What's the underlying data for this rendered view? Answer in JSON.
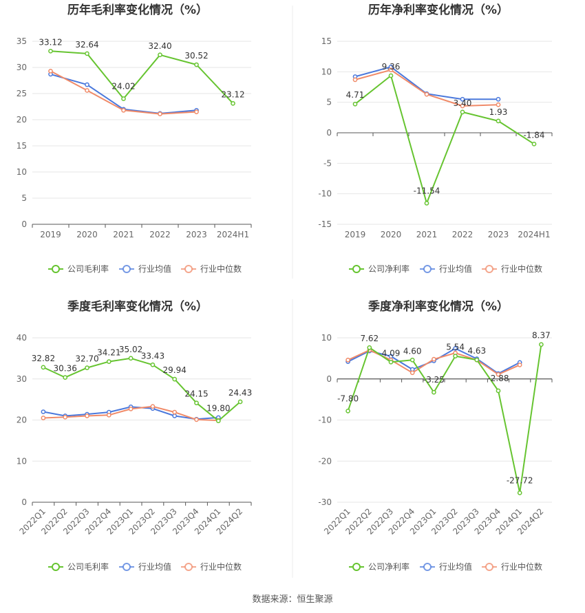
{
  "source": "数据来源：恒生聚源",
  "colors": {
    "company": "#66c430",
    "avg": "#4a78dc",
    "median": "#f08a68"
  },
  "chart_data": [
    {
      "type": "line",
      "title": "历年毛利率变化情况（%）",
      "categories": [
        "2019",
        "2020",
        "2021",
        "2022",
        "2023",
        "2024H1"
      ],
      "ylim": [
        0,
        35
      ],
      "yticks": [
        "0",
        "5",
        "10",
        "15",
        "20",
        "25",
        "30",
        "35"
      ],
      "legend": [
        "公司毛利率",
        "行业均值",
        "行业中位数"
      ],
      "series": [
        {
          "name": "公司毛利率",
          "values": [
            33.12,
            32.64,
            24.02,
            32.4,
            30.52,
            23.12
          ],
          "labels": [
            "33.12",
            "32.64",
            "24.02",
            "32.40",
            "30.52",
            "23.12"
          ]
        },
        {
          "name": "行业均值",
          "values": [
            28.7,
            26.7,
            22.0,
            21.2,
            21.8,
            null
          ]
        },
        {
          "name": "行业中位数",
          "values": [
            29.3,
            25.6,
            21.8,
            21.1,
            21.5,
            null
          ]
        }
      ]
    },
    {
      "type": "line",
      "title": "历年净利率变化情况（%）",
      "categories": [
        "2019",
        "2020",
        "2021",
        "2022",
        "2023",
        "2024H1"
      ],
      "ylim": [
        -15,
        15
      ],
      "yticks": [
        "-15",
        "-10",
        "-5",
        "0",
        "5",
        "10",
        "15"
      ],
      "legend": [
        "公司净利率",
        "行业均值",
        "行业中位数"
      ],
      "series": [
        {
          "name": "公司净利率",
          "values": [
            4.71,
            9.36,
            -11.54,
            3.4,
            1.93,
            -1.84
          ],
          "labels": [
            "4.71",
            "9.36",
            "-11.54",
            "3.40",
            "1.93",
            "-1.84"
          ]
        },
        {
          "name": "行业均值",
          "values": [
            9.2,
            10.8,
            6.4,
            5.5,
            5.5,
            null
          ]
        },
        {
          "name": "行业中位数",
          "values": [
            8.7,
            10.3,
            6.3,
            4.4,
            4.6,
            null
          ]
        }
      ]
    },
    {
      "type": "line",
      "title": "季度毛利率变化情况（%）",
      "categories": [
        "2022Q1",
        "2022Q2",
        "2022Q3",
        "2022Q4",
        "2023Q1",
        "2023Q2",
        "2023Q3",
        "2023Q4",
        "2024Q1",
        "2024Q2"
      ],
      "ylim": [
        0,
        40
      ],
      "yticks": [
        "0",
        "10",
        "20",
        "30",
        "40"
      ],
      "legend": [
        "公司毛利率",
        "行业均值",
        "行业中位数"
      ],
      "series": [
        {
          "name": "公司毛利率",
          "values": [
            32.82,
            30.36,
            32.7,
            34.21,
            35.02,
            33.43,
            29.94,
            24.15,
            19.8,
            24.43
          ],
          "labels": [
            "32.82",
            "30.36",
            "32.70",
            "34.21",
            "35.02",
            "33.43",
            "29.94",
            "24.15",
            "19.80",
            "24.43"
          ]
        },
        {
          "name": "行业均值",
          "values": [
            22.0,
            21.0,
            21.4,
            21.9,
            23.2,
            22.8,
            21.0,
            20.2,
            20.6,
            null
          ]
        },
        {
          "name": "行业中位数",
          "values": [
            20.5,
            20.7,
            21.0,
            21.2,
            22.7,
            23.3,
            21.9,
            20.1,
            19.9,
            null
          ]
        }
      ]
    },
    {
      "type": "line",
      "title": "季度净利率变化情况（%）",
      "categories": [
        "2022Q1",
        "2022Q2",
        "2022Q3",
        "2022Q4",
        "2023Q1",
        "2023Q2",
        "2023Q3",
        "2023Q4",
        "2024Q1",
        "2024Q2"
      ],
      "ylim": [
        -30,
        10
      ],
      "yticks": [
        "-30",
        "-20",
        "-10",
        "0",
        "10"
      ],
      "legend": [
        "公司净利率",
        "行业均值",
        "行业中位数"
      ],
      "series": [
        {
          "name": "公司净利率",
          "values": [
            -7.8,
            7.62,
            4.09,
            4.6,
            -3.25,
            5.54,
            4.63,
            -2.88,
            -27.72,
            8.37
          ],
          "labels": [
            "-7.80",
            "7.62",
            "4.09",
            "4.60",
            "-3.25",
            "5.54",
            "4.63",
            "-2.88",
            "-27.72",
            "8.37"
          ]
        },
        {
          "name": "行业均值",
          "values": [
            4.2,
            6.8,
            5.5,
            2.3,
            4.4,
            7.4,
            4.9,
            1.3,
            4.0,
            null
          ]
        },
        {
          "name": "行业中位数",
          "values": [
            4.6,
            7.0,
            4.6,
            1.5,
            4.8,
            6.3,
            4.6,
            1.1,
            3.4,
            null
          ]
        }
      ]
    }
  ]
}
